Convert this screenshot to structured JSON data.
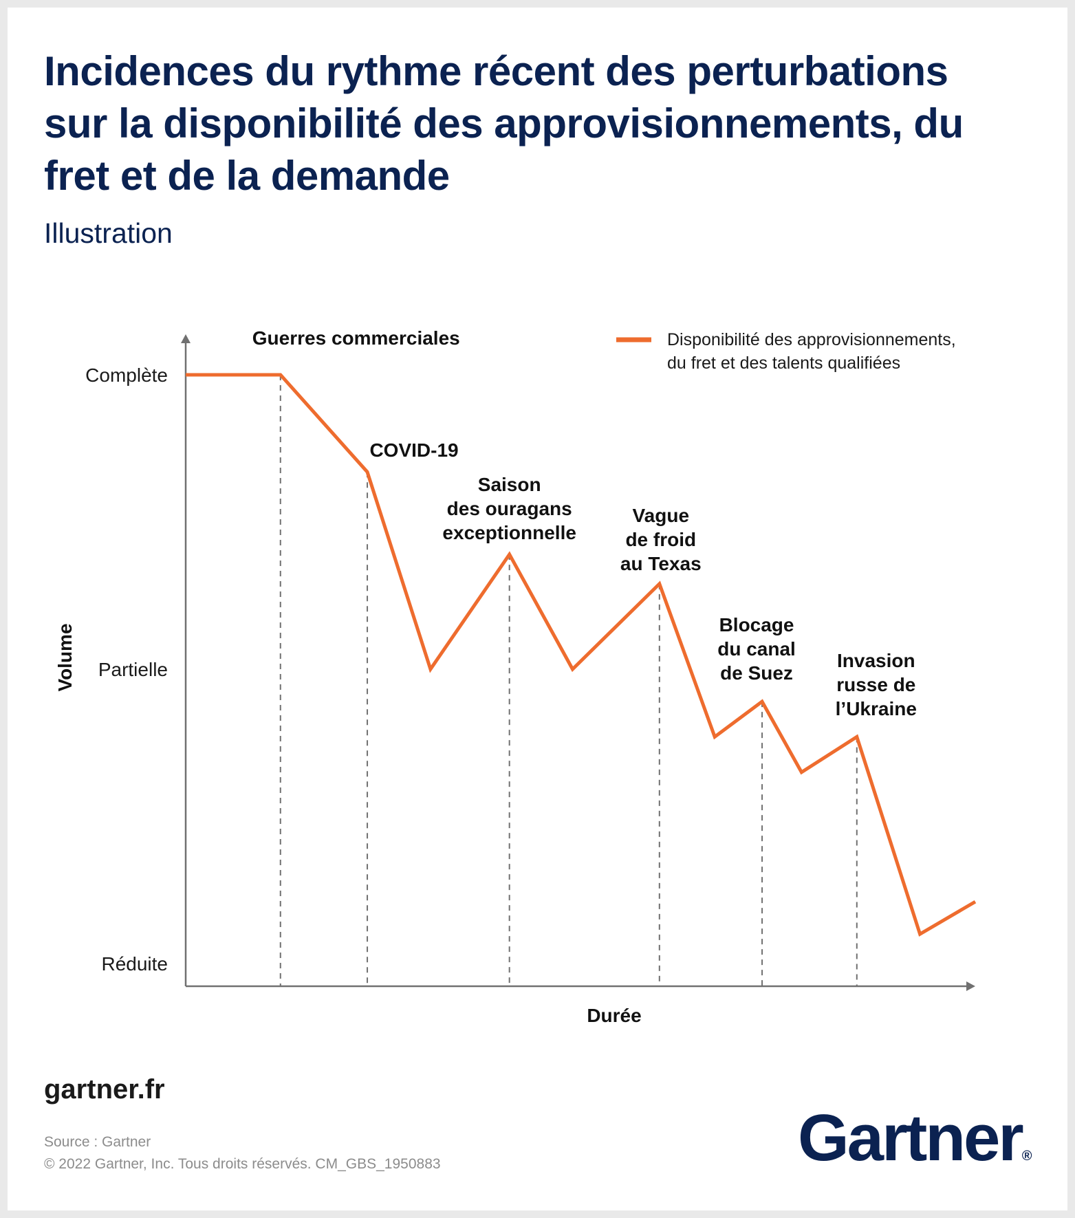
{
  "title": "Incidences du rythme récent des perturbations sur la disponibilité des approvisionnements, du fret et de la demande",
  "subtitle": "Illustration",
  "footer": {
    "site": "gartner.fr",
    "source": "Source : Gartner",
    "copyright": "© 2022 Gartner, Inc. Tous droits réservés. CM_GBS_1950883",
    "logo_text": "Gartner",
    "logo_mark": "®"
  },
  "colors": {
    "navy": "#0b2251",
    "orange": "#ee6c2e",
    "axis": "#707070"
  },
  "chart_data": {
    "type": "line",
    "xlabel": "Durée",
    "ylabel": "Volume",
    "y_categories": [
      "Réduite",
      "Partielle",
      "Complète"
    ],
    "ylim": [
      0,
      2
    ],
    "xlim": [
      0,
      100
    ],
    "legend_position": "top-right",
    "series": [
      {
        "name": "Disponibilité des approvisionnements, du fret et des talents qualifiées",
        "color": "#ee6c2e",
        "points": [
          [
            0,
            2.0
          ],
          [
            12,
            2.0
          ],
          [
            23,
            1.67
          ],
          [
            31,
            1.0
          ],
          [
            41,
            1.39
          ],
          [
            49,
            1.0
          ],
          [
            60,
            1.29
          ],
          [
            67,
            0.77
          ],
          [
            73,
            0.89
          ],
          [
            78,
            0.65
          ],
          [
            85,
            0.77
          ],
          [
            93,
            0.1
          ],
          [
            100,
            0.21
          ]
        ]
      }
    ],
    "events": [
      {
        "label": "Guerres commerciales",
        "x": 12
      },
      {
        "label": "COVID-19",
        "x": 23
      },
      {
        "label": "Saison des ouragans exceptionnelle",
        "x": 41
      },
      {
        "label": "Vague de froid au Texas",
        "x": 60
      },
      {
        "label": "Blocage du canal de Suez",
        "x": 73
      },
      {
        "label": "Invasion russe de l’Ukraine",
        "x": 85
      }
    ]
  }
}
